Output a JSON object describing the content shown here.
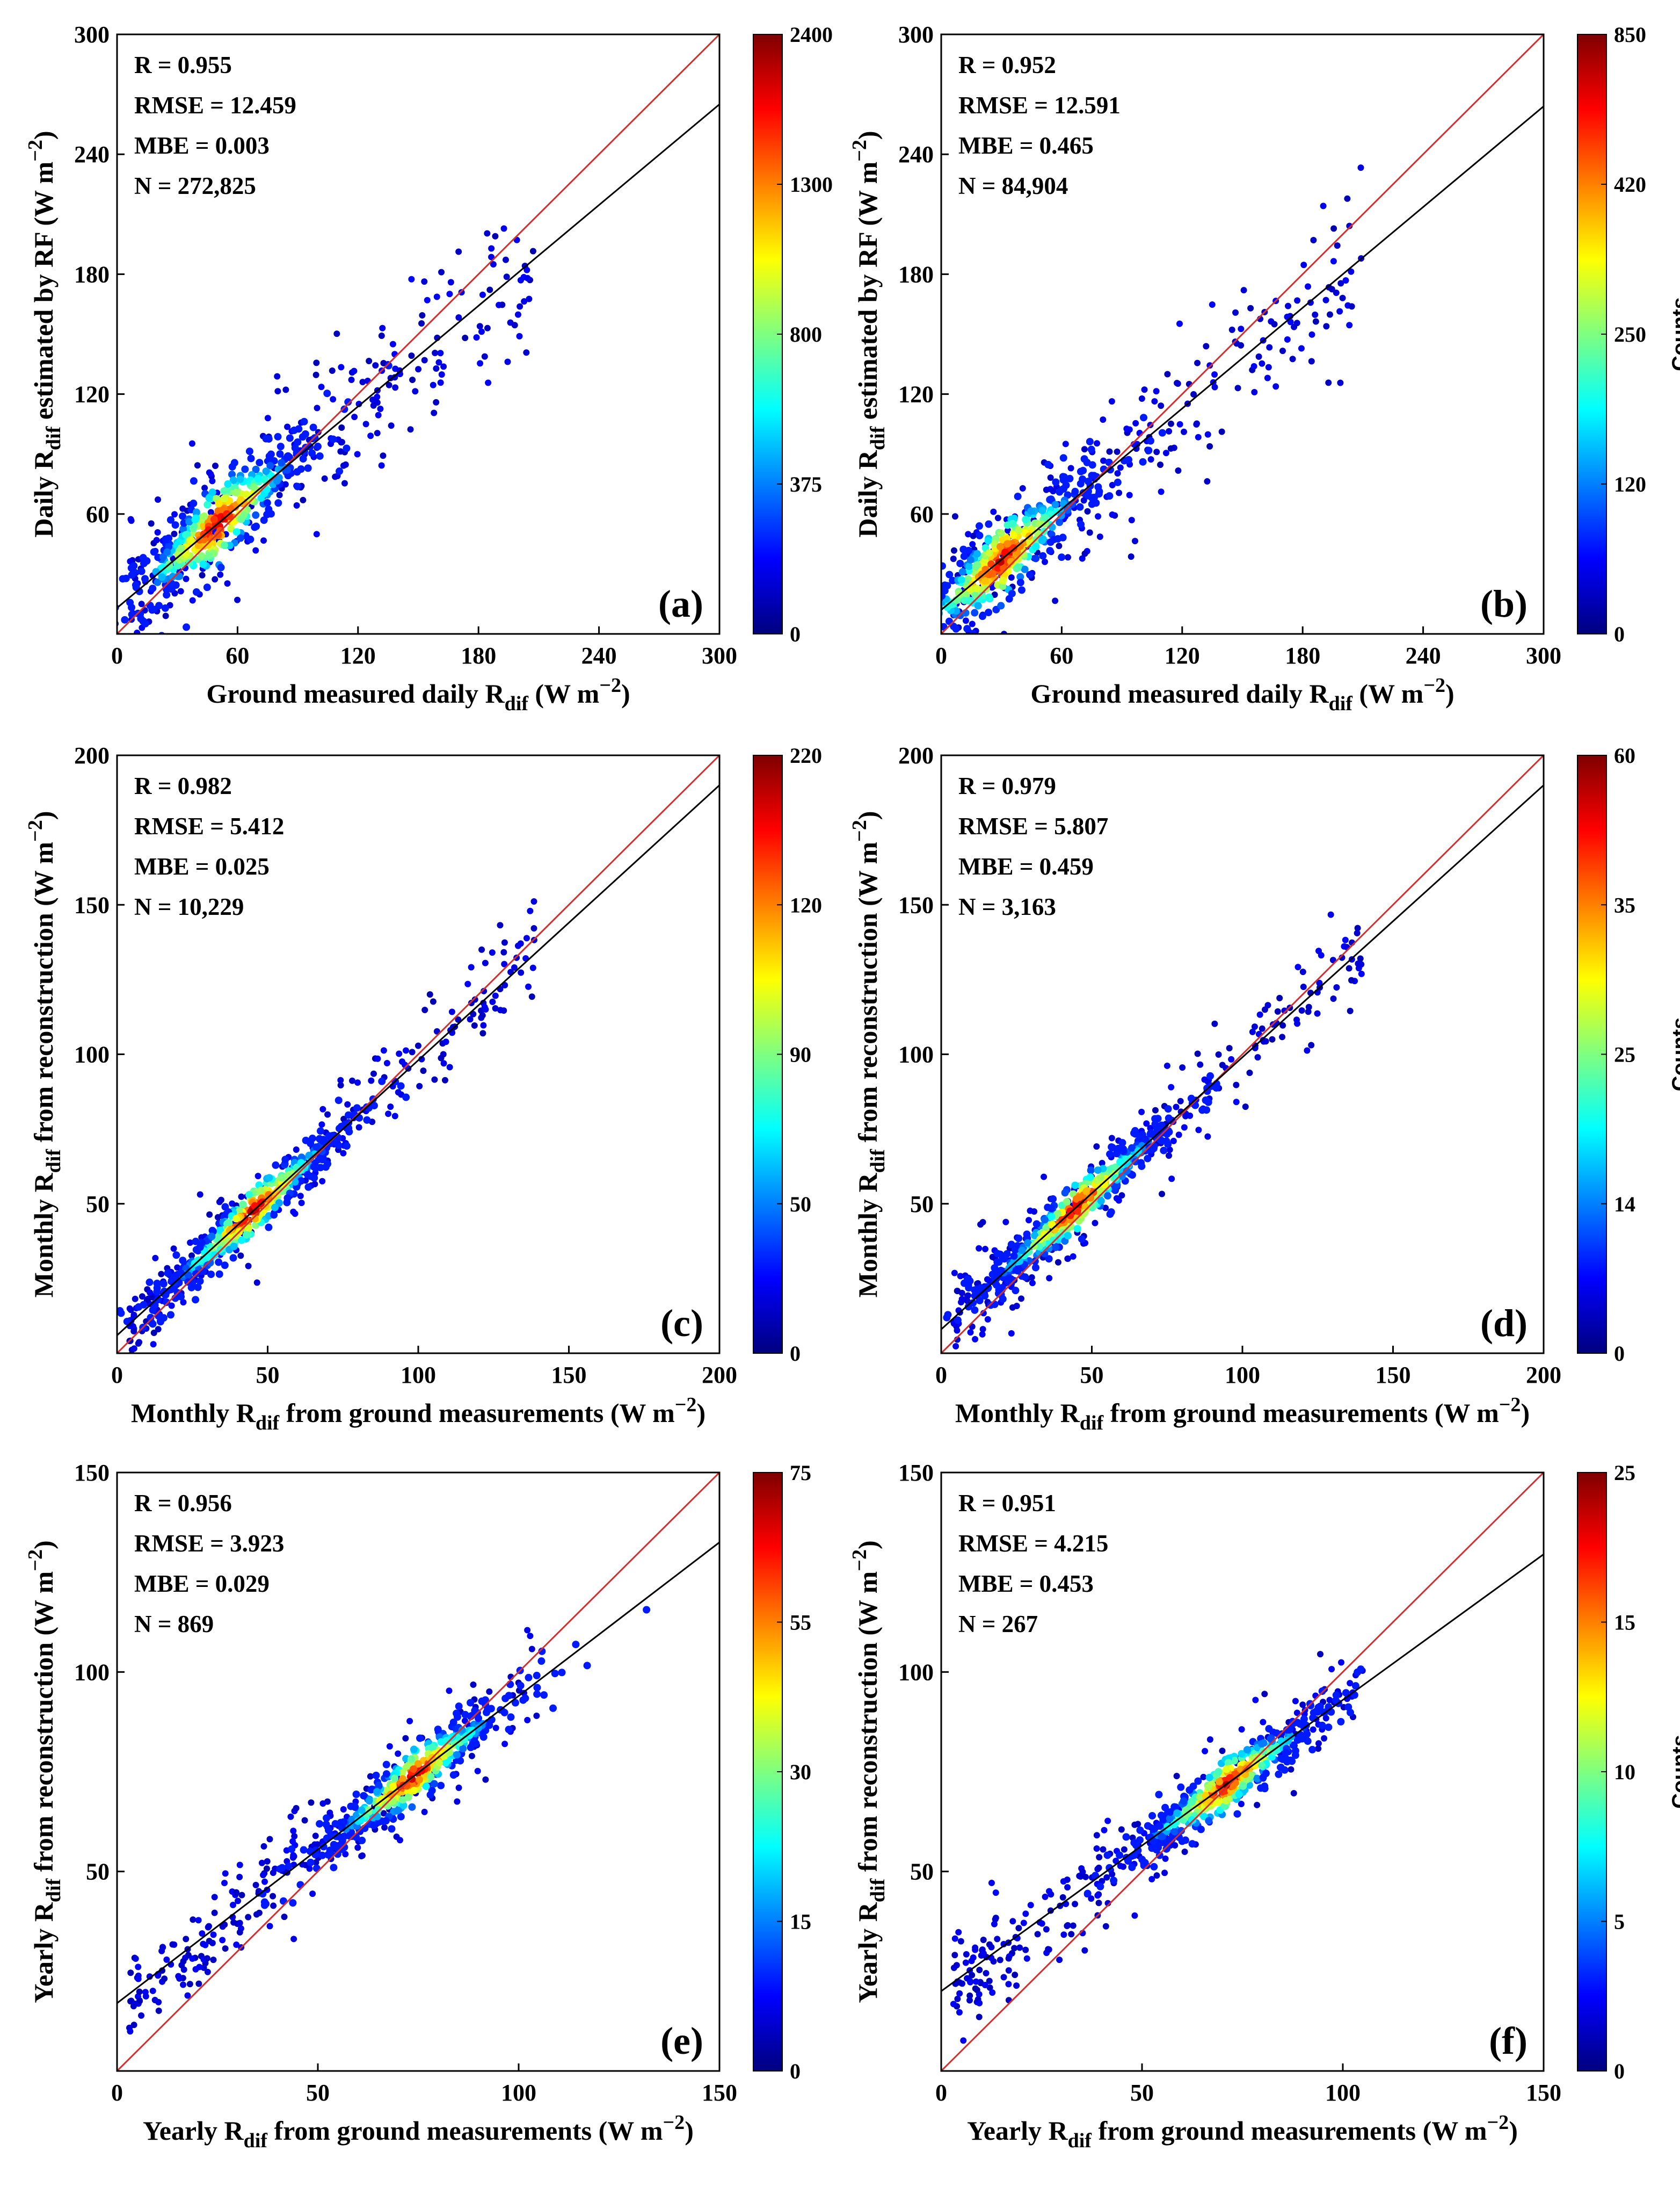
{
  "chart_data": [
    {
      "type": "scatter",
      "panel_label": "(a)",
      "xlabel": {
        "pre": "Ground measured daily R",
        "sub": "dif",
        "post": " (W m",
        "sup": "−2",
        "end": ")"
      },
      "ylabel": {
        "pre": "Daily R",
        "sub": "dif",
        "post": " estimated by RF (W m",
        "sup": "−2",
        "end": ")"
      },
      "xlim": [
        0,
        300
      ],
      "ylim": [
        0,
        300
      ],
      "xticks": [
        0,
        60,
        120,
        180,
        240,
        300
      ],
      "yticks": [
        60,
        120,
        180,
        240,
        300
      ],
      "stats": [
        "R = 0.955",
        "RMSE = 12.459",
        "MBE = 0.003",
        "N = 272,825"
      ],
      "fit_line": {
        "intercept": 13,
        "slope": 0.84
      },
      "one_to_one": true,
      "colorbar": {
        "ticks": [
          "0",
          "375",
          "800",
          "1300",
          "2400"
        ],
        "label": ""
      },
      "density_center": [
        50,
        50
      ],
      "spread": 12
    },
    {
      "type": "scatter",
      "panel_label": "(b)",
      "xlabel": {
        "pre": "Ground measured daily R",
        "sub": "dif",
        "post": " (W m",
        "sup": "−2",
        "end": ")"
      },
      "ylabel": {
        "pre": "Daily R",
        "sub": "dif",
        "post": " estimated by RF (W m",
        "sup": "−2",
        "end": ")"
      },
      "xlim": [
        0,
        300
      ],
      "ylim": [
        0,
        300
      ],
      "xticks": [
        0,
        60,
        120,
        180,
        240,
        300
      ],
      "yticks": [
        60,
        120,
        180,
        240,
        300
      ],
      "stats": [
        "R = 0.952",
        "RMSE = 12.591",
        "MBE = 0.465",
        "N = 84,904"
      ],
      "fit_line": {
        "intercept": 12,
        "slope": 0.84
      },
      "one_to_one": true,
      "colorbar": {
        "ticks": [
          "0",
          "120",
          "250",
          "420",
          "850"
        ],
        "label": "Counts"
      },
      "density_center": [
        30,
        40
      ],
      "spread": 12
    },
    {
      "type": "scatter",
      "panel_label": "(c)",
      "xlabel": {
        "pre": "Monthly R",
        "sub": "dif",
        "post": " from ground measurements (W m",
        "sup": "−2",
        "end": ")"
      },
      "ylabel": {
        "pre": "Monthly R",
        "sub": "dif",
        "post": " from reconstruction (W m",
        "sup": "−2",
        "end": ")"
      },
      "xlim": [
        0,
        200
      ],
      "ylim": [
        0,
        200
      ],
      "xticks": [
        0,
        50,
        100,
        150,
        200
      ],
      "yticks": [
        50,
        100,
        150,
        200
      ],
      "stats": [
        "R = 0.982",
        "RMSE = 5.412",
        "MBE = 0.025",
        "N = 10,229"
      ],
      "fit_line": {
        "intercept": 6,
        "slope": 0.92
      },
      "one_to_one": true,
      "colorbar": {
        "ticks": [
          "0",
          "50",
          "90",
          "120",
          "220"
        ],
        "label": ""
      },
      "density_center": [
        45,
        45
      ],
      "spread": 5
    },
    {
      "type": "scatter",
      "panel_label": "(d)",
      "xlabel": {
        "pre": "Monthly R",
        "sub": "dif",
        "post": " from ground measurements (W m",
        "sup": "−2",
        "end": ")"
      },
      "ylabel": {
        "pre": "Monthly R",
        "sub": "dif",
        "post": " from reconstruction (W m",
        "sup": "−2",
        "end": ")"
      },
      "xlim": [
        0,
        200
      ],
      "ylim": [
        0,
        200
      ],
      "xticks": [
        0,
        50,
        100,
        150,
        200
      ],
      "yticks": [
        50,
        100,
        150,
        200
      ],
      "stats": [
        "R = 0.979",
        "RMSE = 5.807",
        "MBE = 0.459",
        "N = 3,163"
      ],
      "fit_line": {
        "intercept": 8,
        "slope": 0.91
      },
      "one_to_one": true,
      "colorbar": {
        "ticks": [
          "0",
          "14",
          "25",
          "35",
          "60"
        ],
        "label": "Counts"
      },
      "density_center": [
        45,
        45
      ],
      "spread": 5
    },
    {
      "type": "scatter",
      "panel_label": "(e)",
      "xlabel": {
        "pre": "Yearly R",
        "sub": "dif",
        "post": " from ground measurements (W m",
        "sup": "−2",
        "end": ")"
      },
      "ylabel": {
        "pre": "Yearly R",
        "sub": "dif",
        "post": " from reconstruction (W m",
        "sup": "−2",
        "end": ")"
      },
      "xlim": [
        0,
        150
      ],
      "ylim": [
        0,
        150
      ],
      "xticks": [
        0,
        50,
        100,
        150
      ],
      "yticks": [
        50,
        100,
        150
      ],
      "stats": [
        "R = 0.956",
        "RMSE = 3.923",
        "MBE = 0.029",
        "N = 869"
      ],
      "fit_line": {
        "intercept": 17,
        "slope": 0.77
      },
      "one_to_one": true,
      "colorbar": {
        "ticks": [
          "0",
          "15",
          "30",
          "55",
          "75"
        ],
        "label": ""
      },
      "density_center": [
        74,
        74
      ],
      "spread": 4
    },
    {
      "type": "scatter",
      "panel_label": "(f)",
      "xlabel": {
        "pre": "Yearly R",
        "sub": "dif",
        "post": " from ground measurements (W m",
        "sup": "−2",
        "end": ")"
      },
      "ylabel": {
        "pre": "Yearly R",
        "sub": "dif",
        "post": " from reconstruction (W m",
        "sup": "−2",
        "end": ")"
      },
      "xlim": [
        0,
        150
      ],
      "ylim": [
        0,
        150
      ],
      "xticks": [
        0,
        50,
        100,
        150
      ],
      "yticks": [
        50,
        100,
        150
      ],
      "stats": [
        "R = 0.951",
        "RMSE = 4.215",
        "MBE = 0.453",
        "N = 267"
      ],
      "fit_line": {
        "intercept": 20,
        "slope": 0.73
      },
      "one_to_one": true,
      "colorbar": {
        "ticks": [
          "0",
          "5",
          "10",
          "15",
          "25"
        ],
        "label": "Counts"
      },
      "density_center": [
        71,
        71
      ],
      "spread": 4
    }
  ],
  "colors": {
    "one_to_one_line": "#d32f2f",
    "fit_line": "#000000",
    "colormap": [
      "#00007f",
      "#0000ff",
      "#007fff",
      "#00ffff",
      "#7fff7f",
      "#ffff00",
      "#ff7f00",
      "#ff0000",
      "#7f0000"
    ]
  }
}
